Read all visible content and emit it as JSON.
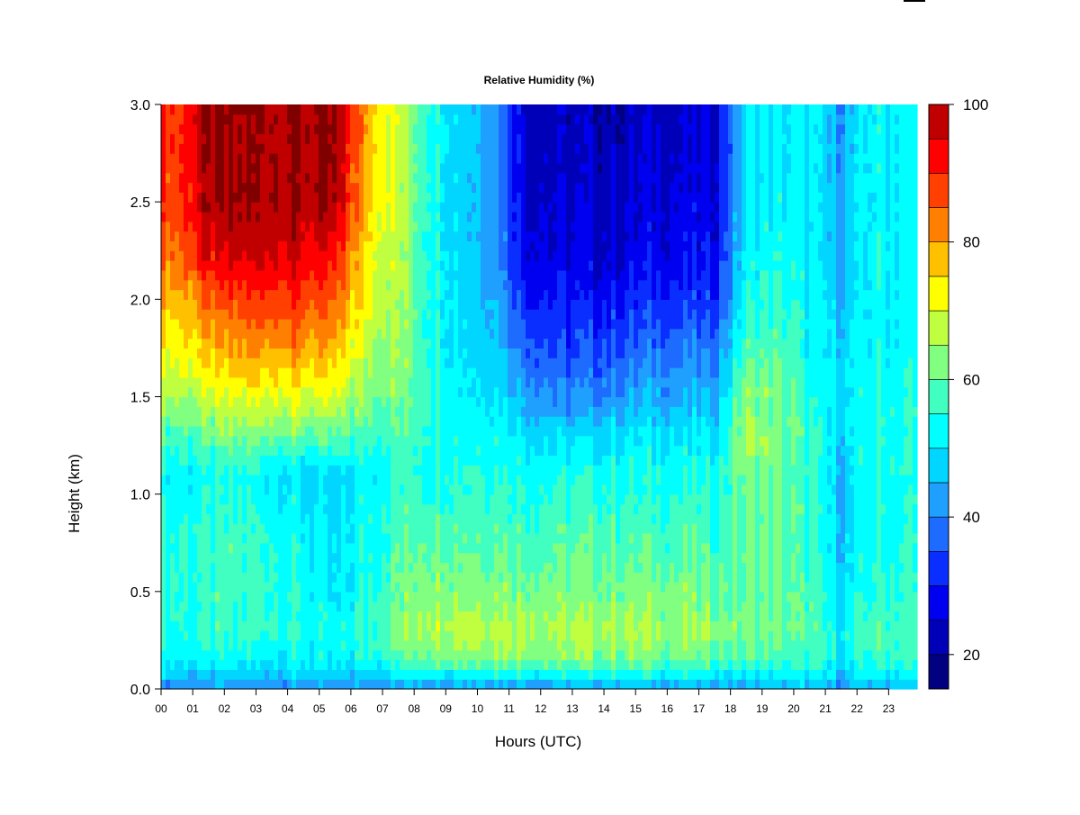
{
  "chart_data": {
    "type": "heatmap",
    "title": "Relative Humidity (%)",
    "xlabel": "Hours (UTC)",
    "ylabel": "Height (km)",
    "x_ticks": [
      "00",
      "01",
      "02",
      "03",
      "04",
      "05",
      "06",
      "07",
      "08",
      "09",
      "10",
      "11",
      "12",
      "13",
      "14",
      "15",
      "16",
      "17",
      "18",
      "19",
      "20",
      "21",
      "22",
      "23"
    ],
    "y_ticks": [
      "0.0",
      "0.5",
      "1.0",
      "1.5",
      "2.0",
      "2.5",
      "3.0"
    ],
    "xlim": [
      0,
      24
    ],
    "ylim": [
      0,
      3.0
    ],
    "value_range": [
      15,
      100
    ],
    "grid": false,
    "legend_position": "right",
    "colorbar": {
      "ticks": [
        "20",
        "40",
        "60",
        "80",
        "100"
      ],
      "tick_values": [
        20,
        40,
        60,
        80,
        100
      ],
      "levels": [
        15,
        20,
        25,
        30,
        35,
        40,
        45,
        50,
        55,
        60,
        65,
        70,
        75,
        80,
        85,
        90,
        95,
        100
      ],
      "colors": [
        "#000080",
        "#0000B8",
        "#0000F0",
        "#0A2EFF",
        "#1E6CFF",
        "#1FA0FF",
        "#00D6FF",
        "#00FFFF",
        "#40FFC0",
        "#80FF80",
        "#C0FF40",
        "#FFFF00",
        "#FFC000",
        "#FF8000",
        "#FF4000",
        "#FF0000",
        "#C00000",
        "#800000"
      ]
    },
    "profile_heights_km": [
      0.0,
      0.05,
      0.15,
      0.3,
      0.5,
      0.8,
      1.1,
      1.3,
      1.5,
      1.75,
      2.0,
      2.2,
      2.5,
      3.0
    ],
    "hourly_profiles": [
      {
        "hour": 0.5,
        "rh": [
          40,
          45,
          52,
          55,
          55,
          55,
          52,
          58,
          66,
          72,
          78,
          84,
          88,
          90
        ]
      },
      {
        "hour": 1.5,
        "rh": [
          40,
          45,
          52,
          56,
          56,
          56,
          52,
          60,
          68,
          76,
          84,
          92,
          98,
          100
        ]
      },
      {
        "hour": 2.5,
        "rh": [
          40,
          45,
          52,
          56,
          57,
          56,
          53,
          62,
          70,
          80,
          88,
          95,
          100,
          100
        ]
      },
      {
        "hour": 3.5,
        "rh": [
          40,
          45,
          52,
          57,
          56,
          56,
          52,
          62,
          72,
          82,
          90,
          96,
          100,
          100
        ]
      },
      {
        "hour": 4.5,
        "rh": [
          40,
          45,
          52,
          55,
          53,
          52,
          48,
          60,
          70,
          80,
          88,
          94,
          100,
          100
        ]
      },
      {
        "hour": 5.5,
        "rh": [
          40,
          45,
          50,
          52,
          48,
          48,
          46,
          58,
          68,
          76,
          84,
          90,
          98,
          100
        ]
      },
      {
        "hour": 6.5,
        "rh": [
          40,
          46,
          54,
          56,
          54,
          54,
          52,
          58,
          64,
          68,
          72,
          74,
          78,
          80
        ]
      },
      {
        "hour": 7.5,
        "rh": [
          42,
          48,
          58,
          62,
          60,
          58,
          56,
          58,
          62,
          64,
          66,
          66,
          68,
          68
        ]
      },
      {
        "hour": 8.5,
        "rh": [
          42,
          50,
          62,
          68,
          64,
          60,
          56,
          56,
          58,
          56,
          56,
          56,
          56,
          56
        ]
      },
      {
        "hour": 9.5,
        "rh": [
          42,
          50,
          64,
          68,
          64,
          60,
          56,
          54,
          52,
          50,
          50,
          48,
          48,
          48
        ]
      },
      {
        "hour": 10.5,
        "rh": [
          42,
          50,
          64,
          68,
          64,
          60,
          56,
          54,
          50,
          48,
          46,
          44,
          44,
          44
        ]
      },
      {
        "hour": 11.5,
        "rh": [
          42,
          50,
          64,
          68,
          62,
          58,
          54,
          50,
          44,
          38,
          32,
          28,
          26,
          25
        ]
      },
      {
        "hour": 12.5,
        "rh": [
          42,
          50,
          62,
          66,
          62,
          58,
          54,
          48,
          40,
          34,
          30,
          26,
          24,
          22
        ]
      },
      {
        "hour": 13.5,
        "rh": [
          42,
          50,
          62,
          66,
          62,
          58,
          54,
          48,
          40,
          34,
          28,
          26,
          24,
          22
        ]
      },
      {
        "hour": 14.5,
        "rh": [
          42,
          50,
          62,
          66,
          62,
          58,
          54,
          50,
          42,
          36,
          30,
          26,
          24,
          22
        ]
      },
      {
        "hour": 15.5,
        "rh": [
          42,
          50,
          62,
          66,
          62,
          58,
          54,
          50,
          44,
          38,
          32,
          28,
          26,
          24
        ]
      },
      {
        "hour": 16.5,
        "rh": [
          42,
          50,
          60,
          64,
          62,
          58,
          54,
          50,
          44,
          38,
          32,
          28,
          26,
          24
        ]
      },
      {
        "hour": 17.5,
        "rh": [
          42,
          50,
          60,
          64,
          60,
          56,
          54,
          50,
          44,
          38,
          32,
          28,
          26,
          24
        ]
      },
      {
        "hour": 18.5,
        "rh": [
          42,
          48,
          58,
          62,
          60,
          60,
          62,
          66,
          64,
          58,
          54,
          52,
          50,
          50
        ]
      },
      {
        "hour": 19.5,
        "rh": [
          44,
          50,
          58,
          62,
          60,
          60,
          60,
          62,
          62,
          58,
          56,
          54,
          52,
          50
        ]
      },
      {
        "hour": 20.5,
        "rh": [
          44,
          50,
          56,
          58,
          58,
          56,
          56,
          56,
          54,
          52,
          52,
          50,
          50,
          50
        ]
      },
      {
        "hour": 21.5,
        "rh": [
          40,
          46,
          50,
          52,
          48,
          46,
          46,
          48,
          48,
          48,
          46,
          44,
          44,
          42
        ]
      },
      {
        "hour": 22.5,
        "rh": [
          44,
          50,
          56,
          58,
          56,
          54,
          54,
          54,
          54,
          52,
          52,
          52,
          52,
          52
        ]
      },
      {
        "hour": 23.5,
        "rh": [
          44,
          50,
          56,
          58,
          56,
          54,
          54,
          54,
          54,
          52,
          52,
          52,
          52,
          52
        ]
      }
    ]
  }
}
